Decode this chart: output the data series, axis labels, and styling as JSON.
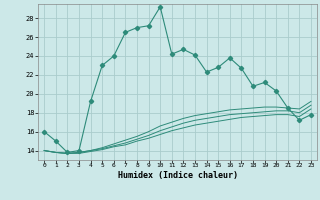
{
  "xlabel": "Humidex (Indice chaleur)",
  "background_color": "#cce8e8",
  "grid_color": "#aacccc",
  "line_color": "#2e8b7a",
  "xlim": [
    -0.5,
    23.5
  ],
  "ylim": [
    13.0,
    29.5
  ],
  "yticks": [
    14,
    16,
    18,
    20,
    22,
    24,
    26,
    28
  ],
  "xticks": [
    0,
    1,
    2,
    3,
    4,
    5,
    6,
    7,
    8,
    9,
    10,
    11,
    12,
    13,
    14,
    15,
    16,
    17,
    18,
    19,
    20,
    21,
    22,
    23
  ],
  "main_line_x": [
    0,
    1,
    2,
    3,
    4,
    5,
    6,
    7,
    8,
    9,
    10,
    11,
    12,
    13,
    14,
    15,
    16,
    17,
    18,
    19,
    20,
    21,
    22,
    23
  ],
  "main_line_y": [
    16.0,
    15.0,
    13.8,
    14.0,
    19.2,
    23.0,
    24.0,
    26.5,
    27.0,
    27.2,
    29.2,
    24.2,
    24.7,
    24.1,
    22.3,
    22.8,
    23.8,
    22.7,
    20.8,
    21.2,
    20.3,
    18.5,
    17.2,
    17.8
  ],
  "lower_line1_x": [
    0,
    1,
    2,
    3,
    4,
    5,
    6,
    7,
    8,
    9,
    10,
    11,
    12,
    13,
    14,
    15,
    16,
    17,
    18,
    19,
    20,
    21,
    22,
    23
  ],
  "lower_line1_y": [
    14.0,
    13.8,
    13.7,
    13.8,
    14.0,
    14.3,
    14.7,
    15.1,
    15.5,
    16.0,
    16.6,
    17.0,
    17.4,
    17.7,
    17.9,
    18.1,
    18.3,
    18.4,
    18.5,
    18.6,
    18.6,
    18.5,
    18.4,
    19.2
  ],
  "lower_line2_x": [
    0,
    1,
    2,
    3,
    4,
    5,
    6,
    7,
    8,
    9,
    10,
    11,
    12,
    13,
    14,
    15,
    16,
    17,
    18,
    19,
    20,
    21,
    22,
    23
  ],
  "lower_line2_y": [
    14.0,
    13.8,
    13.7,
    13.8,
    14.0,
    14.2,
    14.5,
    14.8,
    15.2,
    15.6,
    16.1,
    16.5,
    16.9,
    17.2,
    17.4,
    17.6,
    17.8,
    17.9,
    18.0,
    18.1,
    18.2,
    18.2,
    18.0,
    18.8
  ],
  "lower_line3_x": [
    0,
    1,
    2,
    3,
    4,
    5,
    6,
    7,
    8,
    9,
    10,
    11,
    12,
    13,
    14,
    15,
    16,
    17,
    18,
    19,
    20,
    21,
    22,
    23
  ],
  "lower_line3_y": [
    14.0,
    13.8,
    13.7,
    13.7,
    13.9,
    14.1,
    14.4,
    14.6,
    15.0,
    15.3,
    15.7,
    16.1,
    16.4,
    16.7,
    16.9,
    17.1,
    17.3,
    17.5,
    17.6,
    17.7,
    17.8,
    17.8,
    17.6,
    18.4
  ]
}
